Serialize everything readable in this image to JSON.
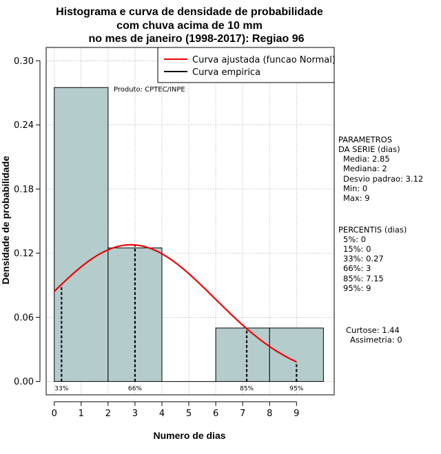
{
  "chart_data": {
    "type": "bar",
    "title": [
      "Histograma e curva de densidade de probabilidade",
      "com chuva acima de 10 mm",
      "no mes de janeiro (1998-2017): Regiao 96"
    ],
    "xlabel": "Numero de dias",
    "ylabel": "Densidade de probabilidade",
    "xlim": [
      -0.3,
      10.4
    ],
    "ylim": [
      -0.0125,
      0.3125
    ],
    "xticks": [
      0,
      1,
      2,
      3,
      4,
      5,
      6,
      7,
      8,
      9
    ],
    "xtick_labels": [
      "0",
      "1",
      "2",
      "3",
      "4",
      "5",
      "6",
      "7",
      "8",
      "9"
    ],
    "yticks": [
      0.0,
      0.06,
      0.12,
      0.18,
      0.24,
      0.3
    ],
    "ytick_labels": [
      "0.00",
      "0.06",
      "0.12",
      "0.18",
      "0.24",
      "0.30"
    ],
    "grid": true,
    "bins": [
      {
        "x0": 0,
        "x1": 2,
        "density": 0.275
      },
      {
        "x0": 2,
        "x1": 4,
        "density": 0.125
      },
      {
        "x0": 4,
        "x1": 6,
        "density": 0.0
      },
      {
        "x0": 6,
        "x1": 8,
        "density": 0.05
      },
      {
        "x0": 8,
        "x1": 10,
        "density": 0.05
      }
    ],
    "bar_color": "#b4cccc",
    "fitted_curve": {
      "label": "Curva ajustada (funcao Normal)",
      "color": "#ee0000",
      "mean": 2.85,
      "sd": 3.12,
      "x_range": [
        0,
        9
      ]
    },
    "empirical_curve": {
      "label": "Curva empirica",
      "color": "#000000"
    },
    "legend_position": "top-right",
    "percentile_lines": [
      {
        "x": 0.27,
        "label": "33%"
      },
      {
        "x": 3,
        "label": "66%"
      },
      {
        "x": 7.15,
        "label": "85%"
      },
      {
        "x": 9,
        "label": "95%"
      }
    ],
    "source_note": "Produto: CPTEC/INPE"
  },
  "parametros": {
    "title_lines": [
      "PARAMETROS",
      "DA SERIE (dias)"
    ],
    "items": [
      "Media: 2.85",
      "Mediana: 2",
      "Desvio padrao: 3.12",
      "Min: 0",
      "Max: 9"
    ]
  },
  "percentis": {
    "title": "PERCENTIS (dias)",
    "items": [
      "5%: 0",
      "15%: 0",
      "33%: 0.27",
      "66%: 3",
      "85%: 7.15",
      "95%: 9"
    ]
  },
  "shape": {
    "items": [
      "Curtose: 1.44",
      "Assimetria: 0"
    ]
  }
}
